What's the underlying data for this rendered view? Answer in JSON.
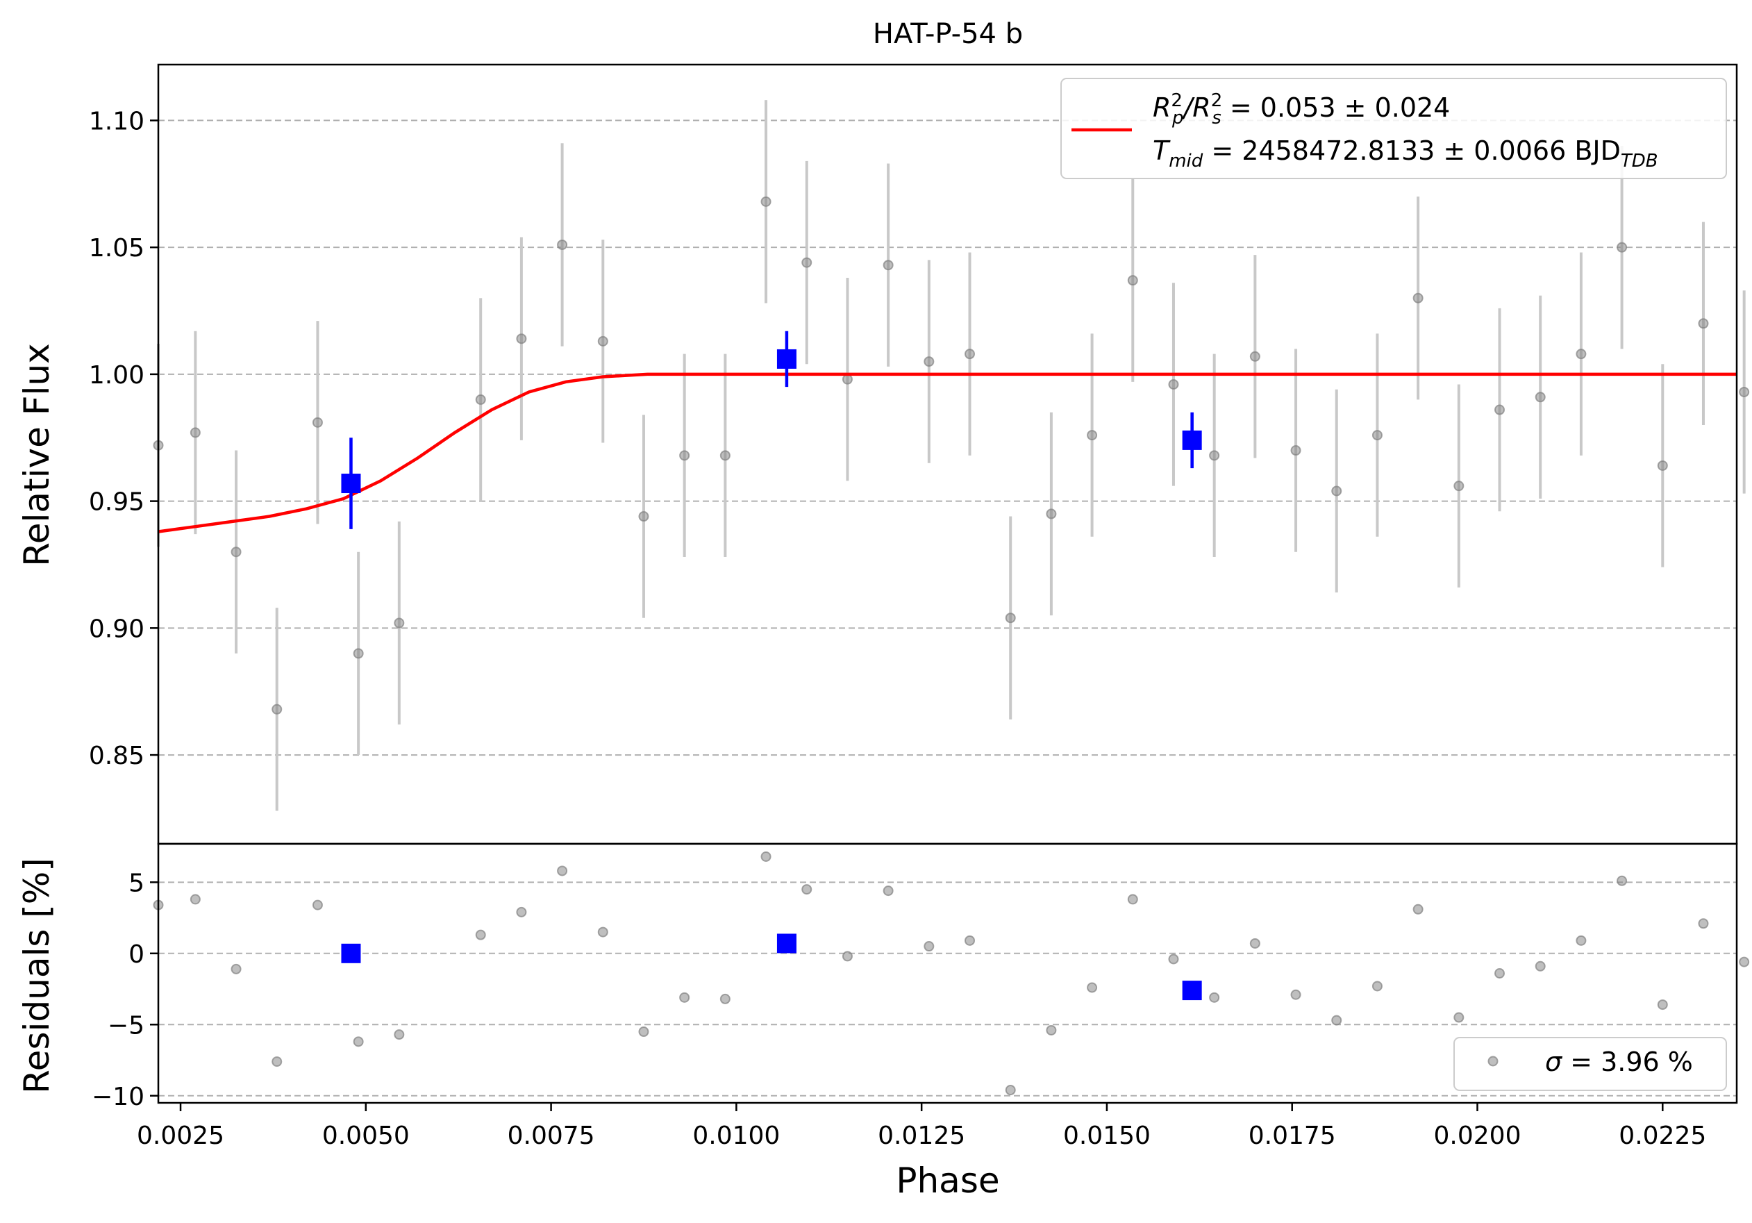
{
  "chart_data": [
    {
      "type": "scatter",
      "panel": "main",
      "title": "HAT-P-54 b",
      "xlabel": "",
      "ylabel": "Relative Flux",
      "xlim": [
        0.0022,
        0.0235
      ],
      "ylim": [
        0.815,
        1.122
      ],
      "grid": "y-dashed",
      "yticks": [
        0.85,
        0.9,
        0.95,
        1.0,
        1.05,
        1.1
      ],
      "ytick_labels": [
        "0.85",
        "0.90",
        "0.95",
        "1.00",
        "1.05",
        "1.10"
      ],
      "legend_position": "top-right",
      "legend": {
        "line1": {
          "lhs_base": "R",
          "lhs_sub1": "p",
          "lhs_sup1": "2",
          "lhs_sep": "/R",
          "lhs_sub2": "s",
          "lhs_sup2": "2",
          "value": " = 0.053 ± 0.024"
        },
        "line2": {
          "lhs_base": "T",
          "lhs_sub": "mid",
          "value": " = 2458472.8133 ± 0.0066 BJD",
          "unit_sub": "TDB"
        }
      },
      "colors": {
        "raw": "#808080",
        "errorbar": "#c8c8c8",
        "binned": "#0000ff",
        "model": "#ff0000",
        "grid": "#b0b0b0"
      },
      "series": [
        {
          "role": "raw",
          "x": [
            0.0022,
            0.0027,
            0.00325,
            0.0038,
            0.00435,
            0.0049,
            0.00545,
            0.00655,
            0.0071,
            0.00765,
            0.0082,
            0.00875,
            0.0093,
            0.00985,
            0.0104,
            0.01095,
            0.0115,
            0.01205,
            0.0126,
            0.01315,
            0.0137,
            0.01425,
            0.0148,
            0.01535,
            0.0159,
            0.01645,
            0.017,
            0.01755,
            0.0181,
            0.01865,
            0.0192,
            0.01975,
            0.0203,
            0.02085,
            0.0214,
            0.02195,
            0.0225,
            0.02305,
            0.0236
          ],
          "y": [
            0.972,
            0.977,
            0.93,
            0.868,
            0.981,
            0.89,
            0.902,
            0.99,
            1.014,
            1.051,
            1.013,
            0.944,
            0.968,
            0.968,
            1.068,
            1.044,
            0.998,
            1.043,
            1.005,
            1.008,
            0.904,
            0.945,
            0.976,
            1.037,
            0.996,
            0.968,
            1.007,
            0.97,
            0.954,
            0.976,
            1.03,
            0.956,
            0.986,
            0.991,
            1.008,
            1.05,
            0.964,
            1.02,
            0.993
          ],
          "yerr": 0.04
        },
        {
          "role": "binned",
          "x": [
            0.0048,
            0.01068,
            0.01615
          ],
          "y": [
            0.957,
            1.006,
            0.974
          ],
          "yerr": [
            0.018,
            0.011,
            0.011
          ]
        },
        {
          "role": "model",
          "x": [
            0.0022,
            0.0027,
            0.0032,
            0.0037,
            0.0042,
            0.0047,
            0.0052,
            0.0057,
            0.0062,
            0.0067,
            0.0072,
            0.0077,
            0.0082,
            0.0088,
            0.0235
          ],
          "y": [
            0.938,
            0.94,
            0.942,
            0.944,
            0.947,
            0.951,
            0.958,
            0.967,
            0.977,
            0.986,
            0.993,
            0.997,
            0.999,
            1.0,
            1.0
          ]
        }
      ]
    },
    {
      "type": "scatter",
      "panel": "residuals",
      "xlabel": "Phase",
      "ylabel": "Residuals [%]",
      "xlim": [
        0.0022,
        0.0235
      ],
      "ylim": [
        -10.5,
        7.7
      ],
      "grid": "y-dashed",
      "yticks": [
        -10,
        -5,
        0,
        5
      ],
      "ytick_labels": [
        "−10",
        "−5",
        "0",
        "5"
      ],
      "xticks": [
        0.0025,
        0.005,
        0.0075,
        0.01,
        0.0125,
        0.015,
        0.0175,
        0.02,
        0.0225
      ],
      "xtick_labels": [
        "0.0025",
        "0.0050",
        "0.0075",
        "0.0100",
        "0.0125",
        "0.0150",
        "0.0175",
        "0.0200",
        "0.0225"
      ],
      "legend_position": "lower-right",
      "legend": {
        "symbol": "σ",
        "value": " = 3.96 %"
      },
      "series": [
        {
          "role": "raw",
          "x": [
            0.0022,
            0.0027,
            0.00325,
            0.0038,
            0.00435,
            0.0049,
            0.00545,
            0.00655,
            0.0071,
            0.00765,
            0.0082,
            0.00875,
            0.0093,
            0.00985,
            0.0104,
            0.01095,
            0.0115,
            0.01205,
            0.0126,
            0.01315,
            0.0137,
            0.01425,
            0.0148,
            0.01535,
            0.0159,
            0.01645,
            0.017,
            0.01755,
            0.0181,
            0.01865,
            0.0192,
            0.01975,
            0.0203,
            0.02085,
            0.0214,
            0.02195,
            0.0225,
            0.02305,
            0.0236
          ],
          "y": [
            3.4,
            3.8,
            -1.1,
            -7.6,
            3.4,
            -6.2,
            -5.7,
            1.3,
            2.9,
            5.8,
            1.5,
            -5.5,
            -3.1,
            -3.2,
            6.8,
            4.5,
            -0.2,
            4.4,
            0.5,
            0.9,
            -9.6,
            -5.4,
            -2.4,
            3.8,
            -0.4,
            -3.1,
            0.7,
            -2.9,
            -4.7,
            -2.3,
            3.1,
            -4.5,
            -1.4,
            -0.9,
            0.9,
            5.1,
            -3.6,
            2.1,
            -0.6
          ]
        },
        {
          "role": "binned",
          "x": [
            0.0048,
            0.01068,
            0.01615
          ],
          "y": [
            0.0,
            0.7,
            -2.6
          ]
        }
      ]
    }
  ]
}
